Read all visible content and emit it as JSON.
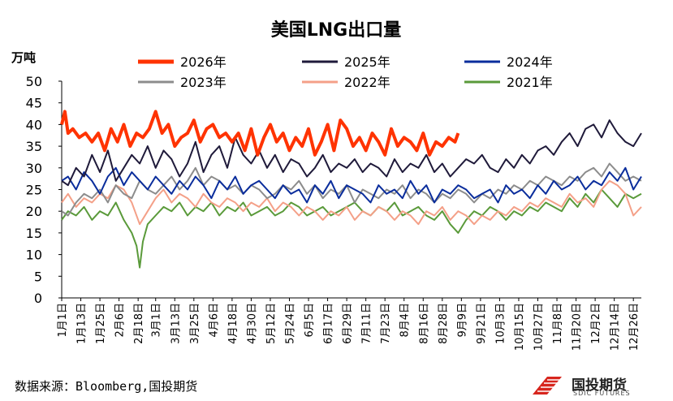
{
  "chart_data": {
    "type": "line",
    "title": "美国LNG出口量",
    "ylabel": "万吨",
    "ylim": [
      0,
      50
    ],
    "yticks": [
      0,
      5,
      10,
      15,
      20,
      25,
      30,
      35,
      40,
      45,
      50
    ],
    "x_unit": "day_of_year",
    "xlim": [
      1,
      365
    ],
    "x_tick_labels": [
      "1月1日",
      "1月13日",
      "1月25日",
      "2月6日",
      "2月18日",
      "3月1日",
      "3月13日",
      "3月25日",
      "4月6日",
      "4月18日",
      "4月30日",
      "5月12日",
      "5月24日",
      "6月5日",
      "6月17日",
      "6月29日",
      "7月11日",
      "7月23日",
      "8月4日",
      "8月16日",
      "8月28日",
      "9月9日",
      "9月21日",
      "10月3日",
      "10月15日",
      "10月27日",
      "11月8日",
      "11月20日",
      "12月2日",
      "12月14日",
      "12月26日"
    ],
    "x_tick_values": [
      1,
      13,
      25,
      37,
      49,
      60,
      72,
      84,
      96,
      108,
      120,
      132,
      144,
      156,
      168,
      180,
      192,
      204,
      216,
      228,
      240,
      252,
      264,
      276,
      288,
      300,
      312,
      324,
      336,
      348,
      360
    ],
    "legend_position": "top",
    "grid": false,
    "series": [
      {
        "name": "2026年",
        "color": "#ff3300",
        "width": 4,
        "x": [
          1,
          3,
          5,
          8,
          12,
          16,
          20,
          24,
          28,
          32,
          36,
          40,
          44,
          48,
          52,
          56,
          60,
          64,
          68,
          72,
          76,
          80,
          84,
          88,
          92,
          96,
          100,
          104,
          108,
          112,
          116,
          120,
          124,
          128,
          132,
          136,
          140,
          144,
          148,
          152,
          156,
          160,
          164,
          168,
          172,
          176,
          180,
          184,
          188,
          192,
          196,
          200,
          204,
          208,
          212,
          216,
          220,
          224,
          228,
          232,
          236,
          240,
          244,
          248,
          250
        ],
        "y": [
          40,
          43,
          38,
          39,
          37,
          38,
          36,
          38,
          34,
          39,
          36,
          40,
          35,
          38,
          37,
          39,
          43,
          38,
          40,
          35,
          37,
          38,
          41,
          36,
          39,
          40,
          37,
          38,
          36,
          38,
          34,
          39,
          33,
          37,
          40,
          36,
          38,
          34,
          37,
          35,
          39,
          33,
          36,
          40,
          34,
          41,
          39,
          35,
          37,
          34,
          38,
          36,
          33,
          39,
          35,
          37,
          36,
          34,
          38,
          33,
          36,
          35,
          37,
          36,
          38
        ]
      },
      {
        "name": "2025年",
        "color": "#1f1a3a",
        "width": 2,
        "x": [
          1,
          5,
          10,
          15,
          20,
          25,
          30,
          35,
          40,
          45,
          50,
          55,
          60,
          65,
          70,
          75,
          80,
          85,
          90,
          95,
          100,
          105,
          110,
          115,
          120,
          125,
          130,
          135,
          140,
          145,
          150,
          155,
          160,
          165,
          170,
          175,
          180,
          185,
          190,
          195,
          200,
          205,
          210,
          215,
          220,
          225,
          230,
          235,
          240,
          245,
          250,
          255,
          260,
          265,
          270,
          275,
          280,
          285,
          290,
          295,
          300,
          305,
          310,
          315,
          320,
          325,
          330,
          335,
          340,
          345,
          350,
          355,
          360,
          365
        ],
        "y": [
          27,
          26,
          30,
          28,
          33,
          29,
          34,
          27,
          30,
          33,
          31,
          35,
          30,
          34,
          32,
          28,
          31,
          36,
          29,
          33,
          35,
          30,
          37,
          33,
          31,
          34,
          30,
          33,
          29,
          32,
          31,
          28,
          30,
          33,
          29,
          31,
          30,
          32,
          29,
          31,
          30,
          28,
          32,
          29,
          31,
          30,
          33,
          29,
          31,
          28,
          30,
          32,
          31,
          33,
          30,
          29,
          32,
          30,
          33,
          31,
          34,
          35,
          33,
          36,
          38,
          35,
          39,
          40,
          37,
          41,
          38,
          36,
          35,
          38
        ]
      },
      {
        "name": "2024年",
        "color": "#0a2d9c",
        "width": 2,
        "x": [
          1,
          5,
          10,
          15,
          20,
          25,
          30,
          35,
          40,
          45,
          50,
          55,
          60,
          65,
          70,
          75,
          80,
          85,
          90,
          95,
          100,
          105,
          110,
          115,
          120,
          125,
          130,
          135,
          140,
          145,
          150,
          155,
          160,
          165,
          170,
          175,
          180,
          185,
          190,
          195,
          200,
          205,
          210,
          215,
          220,
          225,
          230,
          235,
          240,
          245,
          250,
          255,
          260,
          265,
          270,
          275,
          280,
          285,
          290,
          295,
          300,
          305,
          310,
          315,
          320,
          325,
          330,
          335,
          340,
          345,
          350,
          355,
          360,
          365
        ],
        "y": [
          27,
          28,
          25,
          29,
          27,
          24,
          28,
          30,
          26,
          29,
          27,
          25,
          28,
          26,
          24,
          27,
          25,
          28,
          26,
          23,
          27,
          25,
          28,
          24,
          26,
          27,
          25,
          23,
          26,
          24,
          25,
          22,
          26,
          24,
          27,
          23,
          26,
          25,
          24,
          22,
          26,
          24,
          25,
          23,
          27,
          24,
          26,
          22,
          25,
          24,
          26,
          25,
          23,
          24,
          25,
          22,
          26,
          24,
          25,
          23,
          26,
          24,
          27,
          25,
          26,
          28,
          25,
          27,
          26,
          29,
          27,
          30,
          25,
          28
        ]
      },
      {
        "name": "2023年",
        "color": "#8c8c8c",
        "width": 2,
        "x": [
          1,
          5,
          10,
          15,
          20,
          25,
          30,
          35,
          40,
          45,
          50,
          55,
          60,
          65,
          70,
          75,
          80,
          85,
          90,
          95,
          100,
          105,
          110,
          115,
          120,
          125,
          130,
          135,
          140,
          145,
          150,
          155,
          160,
          165,
          170,
          175,
          180,
          185,
          190,
          195,
          200,
          205,
          210,
          215,
          220,
          225,
          230,
          235,
          240,
          245,
          250,
          255,
          260,
          265,
          270,
          275,
          280,
          285,
          290,
          295,
          300,
          305,
          310,
          315,
          320,
          325,
          330,
          335,
          340,
          345,
          350,
          355,
          360,
          365
        ],
        "y": [
          20,
          19,
          22,
          24,
          23,
          25,
          22,
          26,
          24,
          23,
          27,
          25,
          24,
          26,
          28,
          25,
          27,
          30,
          26,
          28,
          27,
          25,
          26,
          24,
          26,
          25,
          23,
          24,
          26,
          25,
          27,
          24,
          26,
          23,
          25,
          24,
          26,
          22,
          25,
          24,
          23,
          25,
          24,
          26,
          23,
          25,
          24,
          22,
          24,
          23,
          25,
          24,
          22,
          24,
          23,
          25,
          24,
          26,
          25,
          27,
          26,
          28,
          27,
          26,
          28,
          27,
          29,
          30,
          28,
          31,
          29,
          27,
          28,
          27
        ]
      },
      {
        "name": "2022年",
        "color": "#f4a088",
        "width": 2,
        "x": [
          1,
          5,
          10,
          15,
          20,
          25,
          30,
          35,
          40,
          45,
          50,
          55,
          60,
          65,
          70,
          75,
          80,
          85,
          90,
          95,
          100,
          105,
          110,
          115,
          120,
          125,
          130,
          135,
          140,
          145,
          150,
          155,
          160,
          165,
          170,
          175,
          180,
          185,
          190,
          195,
          200,
          205,
          210,
          215,
          220,
          225,
          230,
          235,
          240,
          245,
          250,
          255,
          260,
          265,
          270,
          275,
          280,
          285,
          290,
          295,
          300,
          305,
          310,
          315,
          320,
          325,
          330,
          335,
          340,
          345,
          350,
          355,
          360,
          365
        ],
        "y": [
          22,
          24,
          21,
          23,
          22,
          24,
          23,
          26,
          25,
          22,
          17,
          20,
          23,
          25,
          22,
          24,
          23,
          21,
          24,
          22,
          21,
          23,
          22,
          20,
          22,
          21,
          23,
          20,
          22,
          21,
          19,
          21,
          20,
          18,
          20,
          19,
          21,
          18,
          20,
          19,
          21,
          20,
          18,
          20,
          19,
          17,
          20,
          19,
          21,
          18,
          20,
          19,
          17,
          19,
          18,
          20,
          19,
          21,
          20,
          22,
          21,
          23,
          22,
          21,
          24,
          22,
          23,
          21,
          25,
          27,
          26,
          24,
          19,
          21
        ]
      },
      {
        "name": "2021年",
        "color": "#5a9a3a",
        "width": 2,
        "x": [
          1,
          5,
          10,
          15,
          20,
          25,
          30,
          35,
          40,
          45,
          48,
          50,
          52,
          55,
          60,
          65,
          70,
          75,
          80,
          85,
          90,
          95,
          100,
          105,
          110,
          115,
          120,
          125,
          130,
          135,
          140,
          145,
          150,
          155,
          160,
          165,
          170,
          175,
          180,
          185,
          190,
          195,
          200,
          205,
          210,
          215,
          220,
          225,
          230,
          235,
          240,
          245,
          250,
          255,
          260,
          265,
          270,
          275,
          280,
          285,
          290,
          295,
          300,
          305,
          310,
          315,
          320,
          325,
          330,
          335,
          340,
          345,
          350,
          355,
          360,
          365
        ],
        "y": [
          18,
          20,
          19,
          21,
          18,
          20,
          19,
          22,
          18,
          15,
          12,
          7,
          13,
          17,
          19,
          21,
          20,
          22,
          19,
          21,
          20,
          22,
          19,
          21,
          20,
          22,
          19,
          20,
          21,
          19,
          20,
          22,
          21,
          19,
          20,
          21,
          19,
          20,
          21,
          22,
          20,
          19,
          21,
          20,
          22,
          19,
          20,
          21,
          19,
          18,
          20,
          17,
          15,
          18,
          20,
          19,
          21,
          20,
          18,
          20,
          19,
          21,
          20,
          22,
          21,
          20,
          23,
          21,
          24,
          22,
          25,
          23,
          21,
          24,
          23,
          24
        ]
      }
    ]
  },
  "source_text": "数据来源：Bloomberg,国投期货",
  "logo": {
    "name": "国投期货",
    "sub": "SDIC FUTURES"
  }
}
